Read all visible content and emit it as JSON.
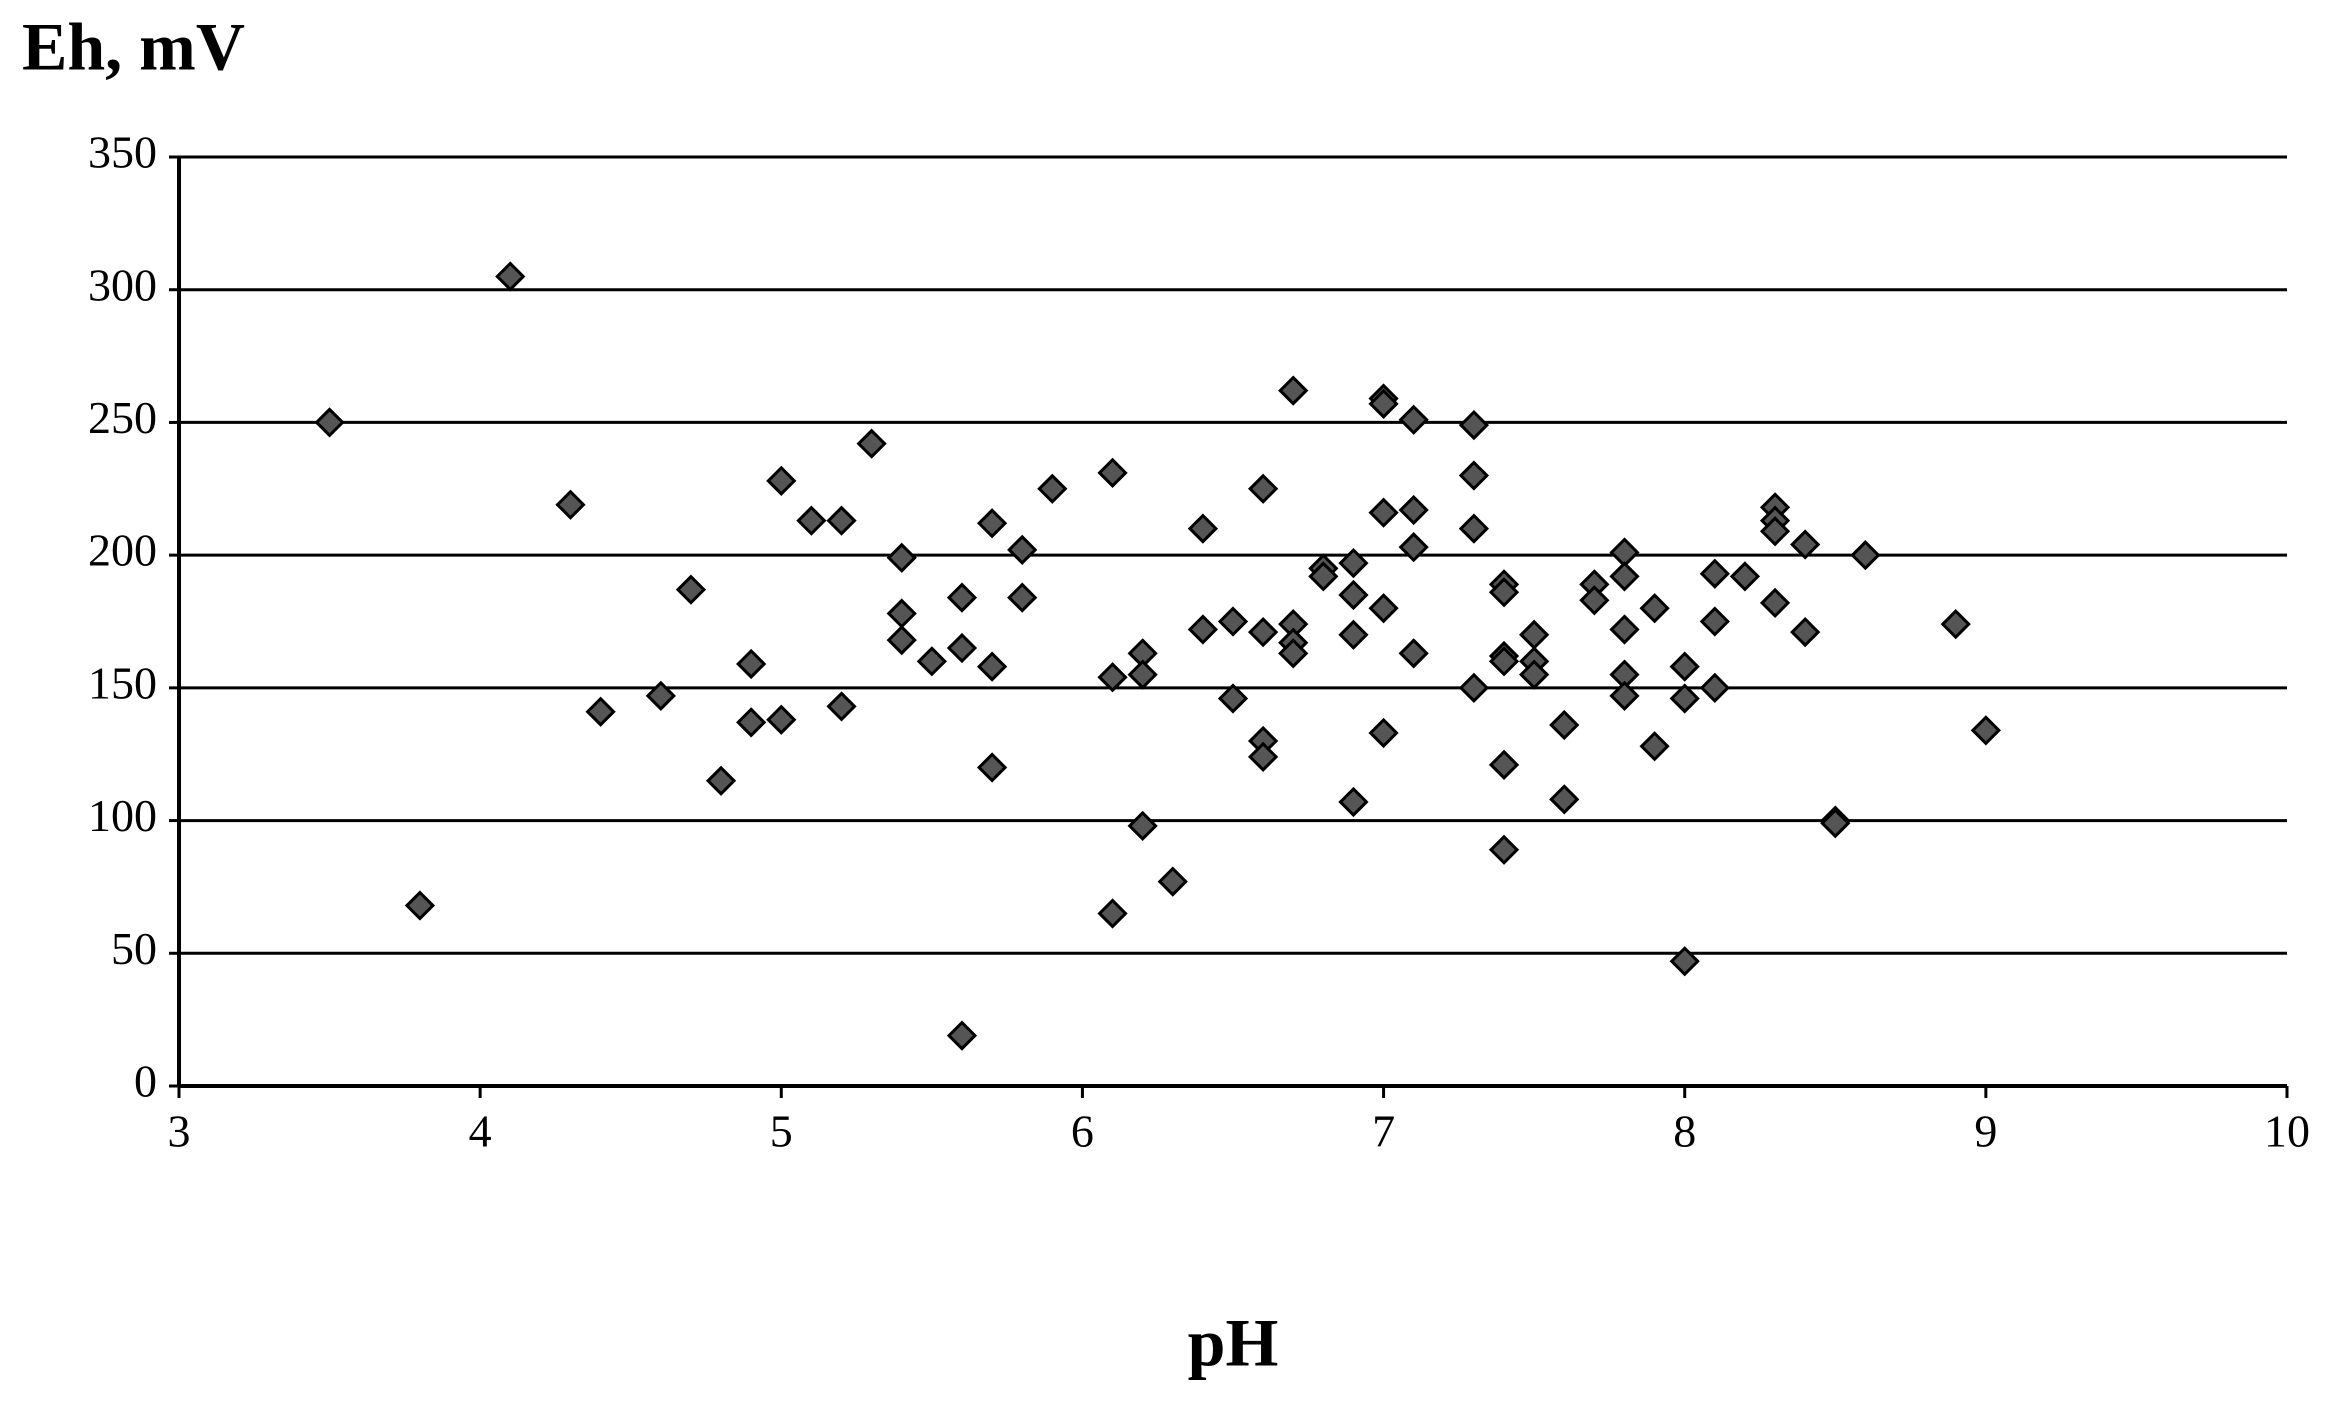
{
  "chart_data": {
    "type": "scatter",
    "y_label": "Eh, mV",
    "x_label": "pH",
    "color": "#555555",
    "grid": true,
    "xlim": [
      3,
      10
    ],
    "ylim": [
      0,
      350
    ],
    "xticks": [
      3,
      4,
      5,
      6,
      7,
      8,
      9,
      10
    ],
    "yticks": [
      0,
      50,
      100,
      150,
      200,
      250,
      300,
      350
    ],
    "x": [
      3.5,
      3.8,
      4.1,
      4.3,
      4.4,
      4.6,
      4.7,
      4.8,
      4.9,
      4.9,
      5.0,
      5.0,
      5.1,
      5.2,
      5.2,
      5.3,
      5.4,
      5.4,
      5.4,
      5.5,
      5.6,
      5.6,
      5.6,
      5.7,
      5.7,
      5.7,
      5.8,
      5.8,
      5.9,
      6.1,
      6.1,
      6.1,
      6.2,
      6.2,
      6.2,
      6.3,
      6.4,
      6.4,
      6.5,
      6.5,
      6.6,
      6.6,
      6.6,
      6.6,
      6.7,
      6.7,
      6.7,
      6.7,
      6.8,
      6.8,
      6.9,
      6.9,
      6.9,
      6.9,
      7.0,
      7.0,
      7.0,
      7.0,
      7.0,
      7.1,
      7.1,
      7.1,
      7.1,
      7.3,
      7.3,
      7.3,
      7.3,
      7.4,
      7.4,
      7.4,
      7.4,
      7.4,
      7.4,
      7.5,
      7.5,
      7.5,
      7.6,
      7.6,
      7.7,
      7.7,
      7.8,
      7.8,
      7.8,
      7.8,
      7.8,
      7.9,
      7.9,
      8.0,
      8.0,
      8.0,
      8.1,
      8.1,
      8.1,
      8.2,
      8.3,
      8.3,
      8.3,
      8.3,
      8.4,
      8.4,
      8.5,
      8.5,
      8.6,
      8.9,
      9.0
    ],
    "y": [
      250,
      68,
      305,
      219,
      141,
      147,
      187,
      115,
      159,
      137,
      228,
      138,
      213,
      213,
      143,
      242,
      199,
      178,
      168,
      160,
      184,
      165,
      19,
      212,
      158,
      120,
      202,
      184,
      225,
      231,
      154,
      65,
      163,
      155,
      98,
      77,
      210,
      172,
      175,
      146,
      225,
      171,
      130,
      124,
      262,
      174,
      167,
      163,
      195,
      192,
      197,
      185,
      170,
      107,
      259,
      257,
      216,
      180,
      133,
      251,
      217,
      203,
      163,
      249,
      230,
      210,
      150,
      189,
      186,
      162,
      160,
      121,
      89,
      170,
      160,
      155,
      136,
      108,
      189,
      183,
      201,
      192,
      172,
      155,
      147,
      180,
      128,
      158,
      146,
      47,
      193,
      175,
      150,
      192,
      218,
      213,
      209,
      182,
      204,
      171,
      100,
      99,
      200,
      174,
      134
    ]
  }
}
